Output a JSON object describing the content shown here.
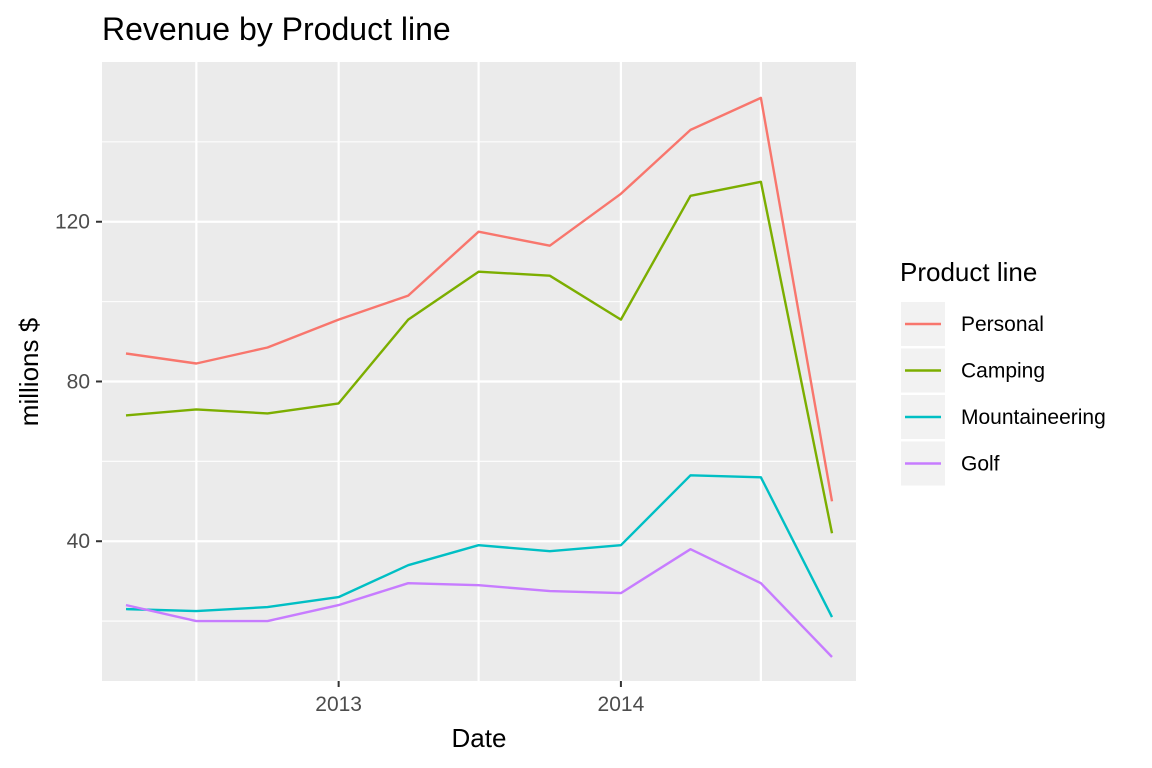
{
  "chart_data": {
    "type": "line",
    "title": "Revenue by Product line",
    "xlabel": "Date",
    "ylabel": "millions $",
    "x": [
      "2012-04-01",
      "2012-07-01",
      "2012-10-01",
      "2013-01-01",
      "2013-04-01",
      "2013-07-01",
      "2013-10-01",
      "2014-01-01",
      "2014-04-01",
      "2014-07-01",
      "2014-10-01"
    ],
    "x_ticks": [
      {
        "date": "2013-01-01",
        "label": "2013"
      },
      {
        "date": "2014-01-01",
        "label": "2014"
      }
    ],
    "x_minor_ticks": [
      "2012-07-01",
      "2013-07-01",
      "2014-07-01"
    ],
    "xlim": [
      "2012-03-01",
      "2014-11-01"
    ],
    "y_ticks": [
      40,
      80,
      120
    ],
    "y_minor_ticks": [
      20,
      60,
      100,
      140
    ],
    "ylim": [
      5,
      160
    ],
    "grid": true,
    "legend": {
      "title": "Product line",
      "position": "right"
    },
    "series": [
      {
        "name": "Personal",
        "color": "#F8766D",
        "values": [
          87,
          84.5,
          88.5,
          95.5,
          101.5,
          117.5,
          114,
          127,
          143,
          151,
          50
        ]
      },
      {
        "name": "Camping",
        "color": "#7CAE00",
        "values": [
          71.5,
          73,
          72,
          74.5,
          95.5,
          107.5,
          106.5,
          95.5,
          126.5,
          130,
          42
        ]
      },
      {
        "name": "Mountaineering",
        "color": "#00BFC4",
        "values": [
          23,
          22.5,
          23.5,
          26,
          34,
          39,
          37.5,
          39,
          56.5,
          56,
          21
        ]
      },
      {
        "name": "Golf",
        "color": "#C77CFF",
        "values": [
          24,
          20,
          20,
          24,
          29.5,
          29,
          27.5,
          27,
          38,
          29.5,
          11
        ]
      }
    ]
  }
}
